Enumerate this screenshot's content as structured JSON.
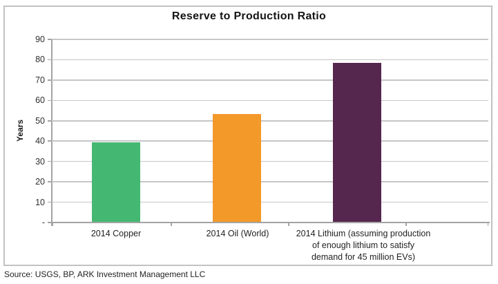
{
  "chart_data": {
    "type": "bar",
    "title": "Reserve to Production Ratio",
    "xlabel": "",
    "ylabel": "Years",
    "categories": [
      "2014 Copper",
      "2014 Oil (World)",
      "2014 Lithium (assuming production of enough lithium to satisfy demand for 45 million EVs)"
    ],
    "category_label_lines": [
      [
        "2014 Copper"
      ],
      [
        "2014 Oil (World)"
      ],
      [
        "2014 Lithium (assuming production",
        "of enough lithium to satisfy",
        "demand for 45 million EVs)"
      ]
    ],
    "values": [
      39,
      53,
      78
    ],
    "bar_colors": [
      "#44B873",
      "#F3992A",
      "#55264E"
    ],
    "ylim": [
      0,
      90
    ],
    "ytick_interval": 10,
    "ytick_labels": [
      "-",
      "10",
      "20",
      "30",
      "40",
      "50",
      "60",
      "70",
      "80",
      "90"
    ],
    "grid": "horizontal",
    "legend": "none"
  },
  "source_note": "Source: USGS, BP, ARK Investment Management LLC",
  "colors": {
    "bar_copper": "#44B873",
    "bar_oil": "#F3992A",
    "bar_lithium": "#55264E",
    "gridline": "#C6C6C6",
    "axis_line": "#A3A3A3",
    "frame_border": "#C2C2C2",
    "text": "#1F1F1F",
    "background": "#FFFFFF"
  }
}
